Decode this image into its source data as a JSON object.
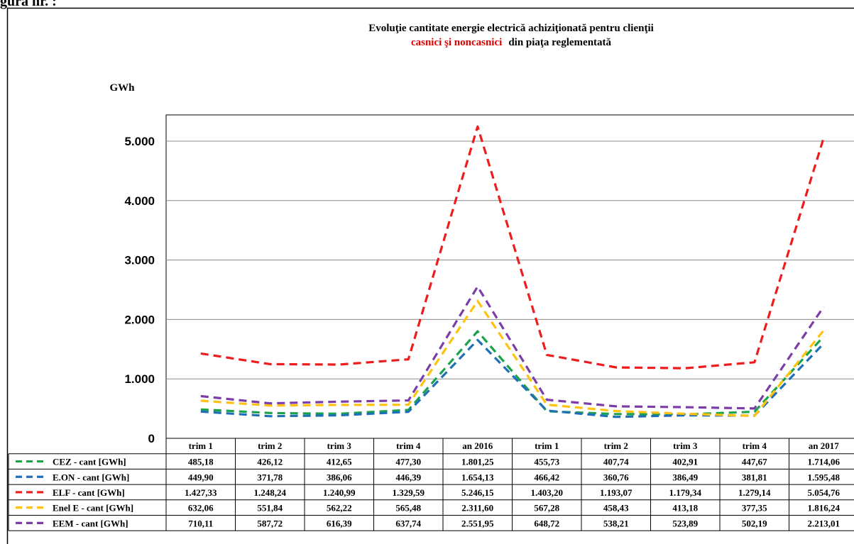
{
  "page": {
    "corner_label": "gura nr. :"
  },
  "chart_data": {
    "type": "line",
    "title": "Evoluţie cantitate energie electrică achiziţionată pentru clienţii",
    "subtitle_red": "casnici şi noncasnici",
    "subtitle_rest": "din piaţa reglementată",
    "ylabel": "GWh",
    "ylim": [
      0,
      5000
    ],
    "yticks": [
      0,
      1000,
      2000,
      3000,
      4000,
      5000
    ],
    "ytick_labels": [
      "0",
      "1.000",
      "2.000",
      "3.000",
      "4.000",
      "5.000"
    ],
    "grid": true,
    "legend": "data table below plot",
    "categories": [
      "trim 1",
      "trim 2",
      "trim 3",
      "trim 4",
      "an 2016",
      "trim 1",
      "trim 2",
      "trim 3",
      "trim 4",
      "an 2017"
    ],
    "series": [
      {
        "name": "CEZ - cant [GWh]",
        "color": "#1aa34a",
        "values": [
          485.18,
          426.12,
          412.65,
          477.3,
          1801.25,
          455.73,
          407.74,
          402.91,
          447.67,
          1714.06
        ],
        "labels": [
          "485,18",
          "426,12",
          "412,65",
          "477,30",
          "1.801,25",
          "455,73",
          "407,74",
          "402,91",
          "447,67",
          "1.714,06"
        ]
      },
      {
        "name": "E.ON - cant [GWh]",
        "color": "#1f6fb8",
        "values": [
          449.9,
          371.78,
          386.06,
          446.39,
          1654.13,
          466.42,
          360.76,
          386.49,
          381.81,
          1595.48
        ],
        "labels": [
          "449,90",
          "371,78",
          "386,06",
          "446,39",
          "1.654,13",
          "466,42",
          "360,76",
          "386,49",
          "381,81",
          "1.595,48"
        ]
      },
      {
        "name": "ELF - cant [GWh]",
        "color": "#ee1c1c",
        "values": [
          1427.33,
          1248.24,
          1240.99,
          1329.59,
          5246.15,
          1403.2,
          1193.07,
          1179.34,
          1279.14,
          5054.76
        ],
        "labels": [
          "1.427,33",
          "1.248,24",
          "1.240,99",
          "1.329,59",
          "5.246,15",
          "1.403,20",
          "1.193,07",
          "1.179,34",
          "1.279,14",
          "5.054,76"
        ]
      },
      {
        "name": "Enel E - cant [GWh]",
        "color": "#ffc20e",
        "values": [
          632.06,
          551.84,
          562.22,
          565.48,
          2311.6,
          567.28,
          458.43,
          413.18,
          377.35,
          1816.24
        ],
        "labels": [
          "632,06",
          "551,84",
          "562,22",
          "565,48",
          "2.311,60",
          "567,28",
          "458,43",
          "413,18",
          "377,35",
          "1.816,24"
        ]
      },
      {
        "name": "EEM - cant [GWh]",
        "color": "#7b3ea8",
        "values": [
          710.11,
          587.72,
          616.39,
          637.74,
          2551.95,
          648.72,
          538.21,
          523.89,
          502.19,
          2213.01
        ],
        "labels": [
          "710,11",
          "587,72",
          "616,39",
          "637,74",
          "2.551,95",
          "648,72",
          "538,21",
          "523,89",
          "502,19",
          "2.213,01"
        ]
      }
    ]
  }
}
